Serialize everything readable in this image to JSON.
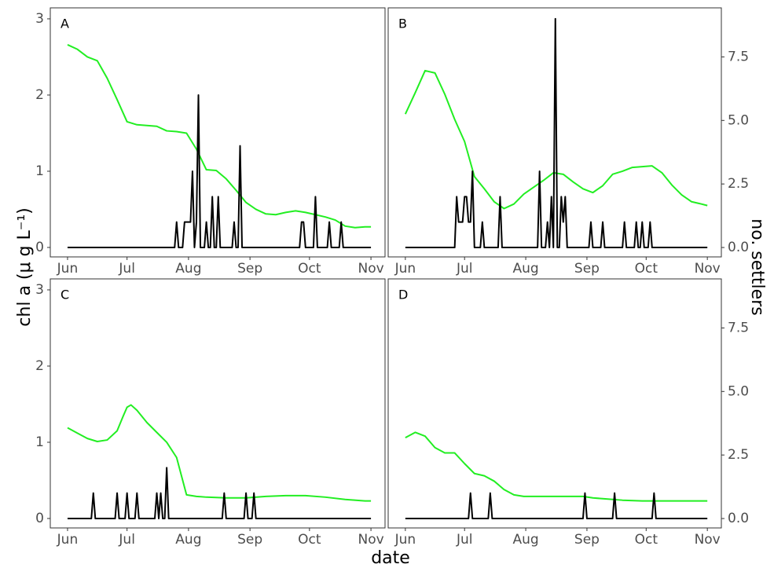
{
  "chart_data": [
    {
      "type": "line",
      "panel_label": "A",
      "xlim": [
        -8.7,
        160.1
      ],
      "ylim": [
        -0.124,
        3.144
      ],
      "y2lim": [
        -0.37,
        9.43
      ],
      "xticks": [
        {
          "value": 0,
          "label": "Jun"
        },
        {
          "value": 30,
          "label": "Jul"
        },
        {
          "value": 61,
          "label": "Aug"
        },
        {
          "value": 92,
          "label": "Sep"
        },
        {
          "value": 122,
          "label": "Oct"
        },
        {
          "value": 153,
          "label": "Nov"
        }
      ],
      "yticks": [
        0,
        1,
        2,
        3
      ],
      "series": [
        {
          "color": "#22ee22",
          "x": [
            0,
            5,
            10,
            15,
            20,
            25,
            30,
            35,
            40,
            45,
            50,
            55,
            60,
            65,
            70,
            75,
            80,
            85,
            90,
            95,
            100,
            105,
            110,
            115,
            120,
            125,
            130,
            135,
            140,
            145,
            150,
            153
          ],
          "values": [
            2.66,
            2.6,
            2.5,
            2.45,
            2.22,
            1.94,
            1.65,
            1.61,
            1.6,
            1.59,
            1.53,
            1.52,
            1.5,
            1.29,
            1.02,
            1.01,
            0.9,
            0.75,
            0.59,
            0.5,
            0.44,
            0.43,
            0.46,
            0.48,
            0.46,
            0.43,
            0.4,
            0.36,
            0.28,
            0.26,
            0.27,
            0.27
          ]
        },
        {
          "color": "#000000",
          "axis": "y2",
          "x": [
            0,
            54,
            55,
            56,
            58,
            59,
            60,
            61,
            62,
            63,
            64,
            65,
            66,
            67,
            69,
            70,
            71,
            72,
            73,
            74,
            75,
            76,
            77,
            83,
            84,
            85,
            86,
            87,
            88,
            117,
            118,
            119,
            120,
            124,
            125,
            126,
            131,
            132,
            133,
            137,
            138,
            139,
            153
          ],
          "values": [
            0,
            0,
            1,
            0,
            0,
            1,
            1,
            1,
            1,
            3,
            0,
            1,
            6,
            0,
            0,
            1,
            0,
            0,
            2,
            0,
            0,
            2,
            0,
            0,
            1,
            0,
            0,
            4,
            0,
            0,
            1,
            1,
            0,
            0,
            2,
            0,
            0,
            1,
            0,
            0,
            1,
            0,
            0
          ]
        }
      ]
    },
    {
      "type": "line",
      "panel_label": "B",
      "xlim": [
        -8.7,
        160.1
      ],
      "ylim": [
        -0.124,
        3.144
      ],
      "y2lim": [
        -0.37,
        9.43
      ],
      "xticks": [
        {
          "value": 0,
          "label": "Jun"
        },
        {
          "value": 30,
          "label": "Jul"
        },
        {
          "value": 61,
          "label": "Aug"
        },
        {
          "value": 92,
          "label": "Sep"
        },
        {
          "value": 122,
          "label": "Oct"
        },
        {
          "value": 153,
          "label": "Nov"
        }
      ],
      "y2ticks": [
        {
          "value": 0,
          "label": "0.0"
        },
        {
          "value": 2.5,
          "label": "2.5"
        },
        {
          "value": 5,
          "label": "5.0"
        },
        {
          "value": 7.5,
          "label": "7.5"
        }
      ],
      "series": [
        {
          "color": "#22ee22",
          "x": [
            0,
            5,
            10,
            15,
            20,
            25,
            30,
            35,
            40,
            45,
            50,
            55,
            60,
            65,
            70,
            75,
            80,
            85,
            90,
            95,
            100,
            105,
            110,
            115,
            120,
            125,
            130,
            135,
            140,
            145,
            150,
            153
          ],
          "values": [
            1.75,
            2.03,
            2.32,
            2.29,
            2.01,
            1.68,
            1.39,
            0.93,
            0.77,
            0.6,
            0.51,
            0.57,
            0.7,
            0.79,
            0.88,
            0.98,
            0.96,
            0.86,
            0.77,
            0.72,
            0.81,
            0.96,
            1.0,
            1.05,
            1.06,
            1.07,
            0.98,
            0.82,
            0.69,
            0.6,
            0.57,
            0.55
          ]
        },
        {
          "color": "#000000",
          "axis": "y2",
          "x": [
            0,
            25,
            26,
            27,
            29,
            30,
            31,
            32,
            33,
            34,
            35,
            38,
            39,
            40,
            47,
            48,
            49,
            67,
            68,
            69,
            71,
            72,
            73,
            74,
            75,
            76,
            77,
            78,
            79,
            80,
            81,
            82,
            93,
            94,
            95,
            99,
            100,
            101,
            110,
            111,
            112,
            116,
            117,
            118,
            119,
            120,
            121,
            123,
            124,
            125,
            153
          ],
          "values": [
            0,
            0,
            2,
            1,
            1,
            2,
            2,
            1,
            1,
            3,
            0,
            0,
            1,
            0,
            0,
            2,
            0,
            0,
            3,
            0,
            0,
            1,
            0,
            2,
            0,
            9,
            0,
            0,
            2,
            1,
            2,
            0,
            0,
            1,
            0,
            0,
            1,
            0,
            0,
            1,
            0,
            0,
            1,
            0,
            0,
            1,
            0,
            0,
            1,
            0,
            0
          ]
        }
      ]
    },
    {
      "type": "line",
      "panel_label": "C",
      "xlim": [
        -8.7,
        160.1
      ],
      "ylim": [
        -0.124,
        3.144
      ],
      "y2lim": [
        -0.37,
        9.43
      ],
      "xticks": [
        {
          "value": 0,
          "label": "Jun"
        },
        {
          "value": 30,
          "label": "Jul"
        },
        {
          "value": 61,
          "label": "Aug"
        },
        {
          "value": 92,
          "label": "Sep"
        },
        {
          "value": 122,
          "label": "Oct"
        },
        {
          "value": 153,
          "label": "Nov"
        }
      ],
      "yticks": [
        0,
        1,
        2,
        3
      ],
      "series": [
        {
          "color": "#22ee22",
          "x": [
            0,
            5,
            10,
            15,
            20,
            25,
            28,
            30,
            32,
            35,
            40,
            45,
            50,
            55,
            60,
            65,
            70,
            80,
            90,
            100,
            110,
            120,
            130,
            140,
            150,
            153
          ],
          "values": [
            1.19,
            1.12,
            1.05,
            1.01,
            1.03,
            1.15,
            1.34,
            1.46,
            1.49,
            1.42,
            1.26,
            1.13,
            1.0,
            0.8,
            0.31,
            0.29,
            0.28,
            0.27,
            0.27,
            0.29,
            0.3,
            0.3,
            0.28,
            0.25,
            0.23,
            0.23
          ]
        },
        {
          "color": "#000000",
          "axis": "y2",
          "x": [
            0,
            12,
            13,
            14,
            24,
            25,
            26,
            29,
            30,
            31,
            34,
            35,
            36,
            44,
            45,
            46,
            47,
            48,
            49,
            50,
            51,
            78,
            79,
            80,
            89,
            90,
            91,
            93,
            94,
            95,
            153
          ],
          "values": [
            0,
            0,
            1,
            0,
            0,
            1,
            0,
            0,
            1,
            0,
            0,
            1,
            0,
            0,
            1,
            0,
            1,
            0,
            0,
            2,
            0,
            0,
            1,
            0,
            0,
            1,
            0,
            0,
            1,
            0,
            0
          ]
        }
      ]
    },
    {
      "type": "line",
      "panel_label": "D",
      "xlim": [
        -8.7,
        160.1
      ],
      "ylim": [
        -0.124,
        3.144
      ],
      "y2lim": [
        -0.37,
        9.43
      ],
      "xticks": [
        {
          "value": 0,
          "label": "Jun"
        },
        {
          "value": 30,
          "label": "Jul"
        },
        {
          "value": 61,
          "label": "Aug"
        },
        {
          "value": 92,
          "label": "Sep"
        },
        {
          "value": 122,
          "label": "Oct"
        },
        {
          "value": 153,
          "label": "Nov"
        }
      ],
      "y2ticks": [
        {
          "value": 0,
          "label": "0.0"
        },
        {
          "value": 2.5,
          "label": "2.5"
        },
        {
          "value": 5,
          "label": "5.0"
        },
        {
          "value": 7.5,
          "label": "7.5"
        }
      ],
      "series": [
        {
          "color": "#22ee22",
          "x": [
            0,
            5,
            10,
            15,
            20,
            25,
            30,
            35,
            40,
            45,
            50,
            55,
            60,
            70,
            80,
            90,
            95,
            100,
            110,
            120,
            130,
            140,
            153
          ],
          "values": [
            1.06,
            1.13,
            1.08,
            0.93,
            0.86,
            0.86,
            0.72,
            0.59,
            0.56,
            0.49,
            0.38,
            0.31,
            0.29,
            0.29,
            0.29,
            0.29,
            0.27,
            0.26,
            0.24,
            0.23,
            0.23,
            0.23,
            0.23
          ]
        },
        {
          "color": "#000000",
          "axis": "y2",
          "x": [
            0,
            32,
            33,
            34,
            42,
            43,
            44,
            90,
            91,
            92,
            105,
            106,
            107,
            125,
            126,
            127,
            153
          ],
          "values": [
            0,
            0,
            1,
            0,
            0,
            1,
            0,
            0,
            1,
            0,
            0,
            1,
            0,
            0,
            1,
            0,
            0
          ]
        }
      ]
    }
  ],
  "ylabel": "chl a (μ g L⁻¹)",
  "y2label": "no. settlers",
  "xlabel": "date"
}
